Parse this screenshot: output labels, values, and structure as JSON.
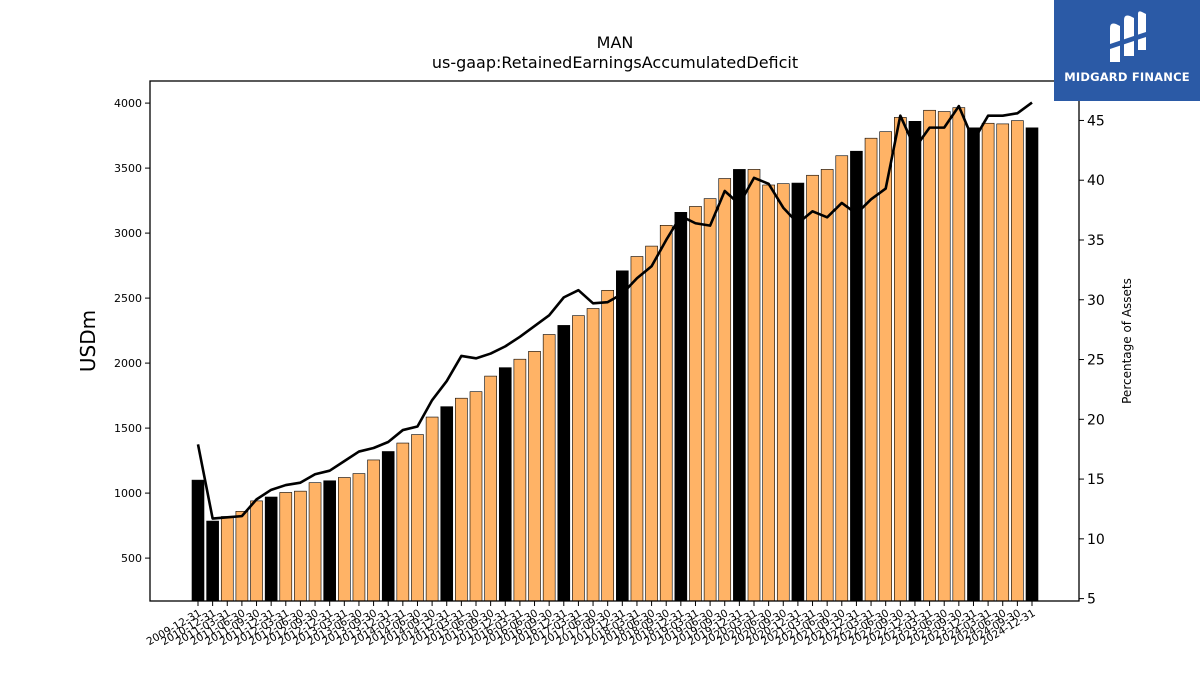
{
  "logo": {
    "text": "MIDGARD FINANCE",
    "icon": "midgard-logo-icon",
    "background": "#2b5aa6"
  },
  "chart_data": {
    "type": "bar",
    "title": "MAN",
    "subtitle": "us-gaap:RetainedEarningsAccumulatedDeficit",
    "ylabel": "USDm",
    "y2label": "Percentage of Assets",
    "ylim": [
      170,
      4170
    ],
    "y2lim": [
      4.8,
      48.3
    ],
    "yticks": [
      500,
      1000,
      1500,
      2000,
      2500,
      3000,
      3500,
      4000
    ],
    "y2ticks": [
      5,
      10,
      15,
      20,
      25,
      30,
      35,
      40,
      45
    ],
    "colors": {
      "annual": "#000000",
      "quarter": "#ffb366",
      "line": "#000000"
    },
    "categories": [
      "2009-12-31",
      "2010-12-31",
      "2011-03-31",
      "2011-06-30",
      "2011-09-30",
      "2011-12-31",
      "2012-03-31",
      "2012-06-30",
      "2012-09-30",
      "2012-12-31",
      "2013-03-31",
      "2013-06-30",
      "2013-09-30",
      "2013-12-31",
      "2014-03-31",
      "2014-06-30",
      "2014-09-30",
      "2014-12-31",
      "2015-03-31",
      "2015-06-30",
      "2015-09-30",
      "2015-12-31",
      "2016-03-31",
      "2016-06-30",
      "2016-09-30",
      "2016-12-31",
      "2017-03-31",
      "2017-06-30",
      "2017-09-30",
      "2017-12-31",
      "2018-03-31",
      "2018-06-30",
      "2018-09-30",
      "2018-12-31",
      "2019-03-31",
      "2019-06-30",
      "2019-09-30",
      "2019-12-31",
      "2020-03-31",
      "2020-06-30",
      "2020-09-30",
      "2020-12-31",
      "2021-03-31",
      "2021-06-30",
      "2021-09-30",
      "2021-12-31",
      "2022-03-31",
      "2022-06-30",
      "2022-09-30",
      "2022-12-31",
      "2023-03-31",
      "2023-06-30",
      "2023-09-30",
      "2023-12-31",
      "2024-03-31",
      "2024-06-30",
      "2024-09-30",
      "2024-12-31"
    ],
    "bar_kind": [
      "annual",
      "annual",
      "quarter",
      "quarter",
      "quarter",
      "annual",
      "quarter",
      "quarter",
      "quarter",
      "annual",
      "quarter",
      "quarter",
      "quarter",
      "annual",
      "quarter",
      "quarter",
      "quarter",
      "annual",
      "quarter",
      "quarter",
      "quarter",
      "annual",
      "quarter",
      "quarter",
      "quarter",
      "annual",
      "quarter",
      "quarter",
      "quarter",
      "annual",
      "quarter",
      "quarter",
      "quarter",
      "annual",
      "quarter",
      "quarter",
      "quarter",
      "annual",
      "quarter",
      "quarter",
      "quarter",
      "annual",
      "quarter",
      "quarter",
      "quarter",
      "annual",
      "quarter",
      "quarter",
      "quarter",
      "annual",
      "quarter",
      "quarter",
      "quarter",
      "annual",
      "quarter",
      "quarter",
      "quarter",
      "annual"
    ],
    "series": [
      {
        "type": "bar",
        "axis": "left",
        "values": [
          1100,
          785,
          820,
          860,
          940,
          970,
          1005,
          1015,
          1080,
          1095,
          1120,
          1150,
          1255,
          1320,
          1385,
          1450,
          1585,
          1665,
          1730,
          1780,
          1900,
          1965,
          2030,
          2090,
          2220,
          2290,
          2365,
          2420,
          2560,
          2710,
          2820,
          2900,
          3060,
          3160,
          3205,
          3265,
          3420,
          3490,
          3490,
          3370,
          3380,
          3385,
          3445,
          3490,
          3595,
          3630,
          3730,
          3780,
          3890,
          3860,
          3945,
          3935,
          3965,
          3810,
          3845,
          3840,
          3865,
          3810
        ]
      },
      {
        "type": "line",
        "axis": "right",
        "values": [
          17.9,
          11.7,
          11.8,
          11.9,
          13.3,
          14.1,
          14.5,
          14.7,
          15.4,
          15.7,
          16.5,
          17.3,
          17.6,
          18.1,
          19.1,
          19.4,
          21.6,
          23.2,
          25.3,
          25.1,
          25.5,
          26.1,
          26.9,
          27.8,
          28.7,
          30.2,
          30.8,
          29.7,
          29.8,
          30.5,
          31.8,
          32.8,
          35.0,
          37.0,
          36.4,
          36.2,
          39.1,
          38.0,
          40.2,
          39.7,
          37.7,
          36.4,
          37.4,
          36.9,
          38.1,
          37.2,
          38.4,
          39.3,
          45.4,
          42.7,
          44.4,
          44.4,
          46.2,
          43.3,
          45.4,
          45.4,
          45.6,
          46.5
        ]
      }
    ]
  }
}
